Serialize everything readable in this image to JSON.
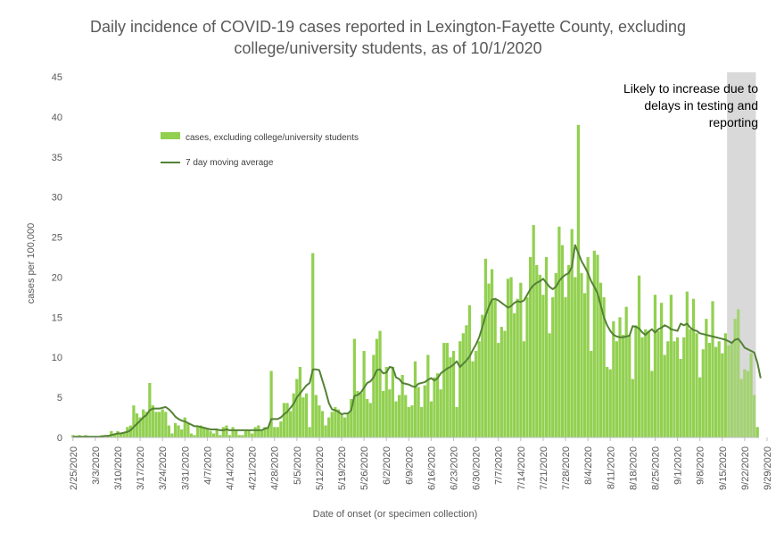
{
  "chart_data": {
    "type": "bar",
    "title_line1": "Daily incidence of COVID-19 cases reported in Lexington-Fayette County, excluding",
    "title_line2": "college/university students, as of 10/1/2020",
    "xlabel": "Date of onset (or specimen collection)",
    "ylabel": "cases per 100,000",
    "ylim": [
      0,
      45
    ],
    "yticks": [
      0,
      5,
      10,
      15,
      20,
      25,
      30,
      35,
      40,
      45
    ],
    "x_start": "2/25/2020",
    "x_tick_labels": [
      "2/25/2020",
      "3/3/2020",
      "3/10/2020",
      "3/17/2020",
      "3/24/2020",
      "3/31/2020",
      "4/7/2020",
      "4/14/2020",
      "4/21/2020",
      "4/28/2020",
      "5/5/2020",
      "5/12/2020",
      "5/19/2020",
      "5/26/2020",
      "6/2/2020",
      "6/9/2020",
      "6/16/2020",
      "6/23/2020",
      "6/30/2020",
      "7/7/2020",
      "7/14/2020",
      "7/21/2020",
      "7/28/2020",
      "8/4/2020",
      "8/11/2020",
      "8/18/2020",
      "8/25/2020",
      "9/1/2020",
      "9/8/2020",
      "9/15/2020",
      "9/22/2020",
      "9/29/2020"
    ],
    "legend_position": "top-left",
    "series": [
      {
        "name": "cases, excluding college/university students",
        "kind": "bar",
        "color": "#92D050",
        "values": [
          0.3,
          0,
          0.3,
          0,
          0.3,
          0,
          0,
          0,
          0,
          0.3,
          0,
          0.3,
          0.8,
          0.5,
          0.8,
          0.5,
          0.5,
          1.3,
          1.5,
          4,
          3,
          2.5,
          3.5,
          3.2,
          6.8,
          4,
          3.2,
          3.2,
          3.5,
          3.2,
          1.5,
          0.5,
          1.8,
          1.5,
          1,
          2.5,
          1.8,
          0.5,
          0.3,
          1.3,
          1.5,
          1.3,
          1,
          0.8,
          0.5,
          1,
          0.3,
          1.3,
          1.5,
          0.3,
          1.3,
          1,
          0.3,
          0.3,
          0.8,
          1,
          0.5,
          1.3,
          1.5,
          0.8,
          1.3,
          1.3,
          8.3,
          1.3,
          1.3,
          2,
          4.3,
          4.3,
          3.3,
          5.5,
          7.3,
          8.8,
          5,
          5.5,
          1.3,
          23,
          5.3,
          4,
          3.3,
          1.5,
          2.5,
          3.2,
          3.8,
          3.5,
          3,
          2.5,
          3,
          4.8,
          12.3,
          5.8,
          5.5,
          10.8,
          4.8,
          4.3,
          10.3,
          12.3,
          13.3,
          5.8,
          8.8,
          6,
          8.8,
          4.5,
          5.3,
          7.8,
          5.3,
          3.8,
          4,
          9.5,
          6.3,
          3.8,
          6.5,
          10.3,
          4.5,
          7.5,
          8,
          6,
          11.8,
          11.8,
          10,
          10.8,
          3.8,
          12,
          13,
          14,
          16.5,
          9.5,
          10.8,
          12,
          15.3,
          22.3,
          19.2,
          21,
          17.3,
          11.8,
          13.8,
          13.3,
          19.8,
          20,
          15.5,
          17.3,
          19.3,
          12,
          17.5,
          22.5,
          26.5,
          21.5,
          20.3,
          17.8,
          22.5,
          13,
          17.5,
          20.5,
          26.3,
          24,
          17.5,
          21.5,
          26,
          20,
          39,
          20.5,
          18,
          22.5,
          10.8,
          23.3,
          22.8,
          19.3,
          17.5,
          8.8,
          8.5,
          14.5,
          12,
          15,
          12.8,
          16.3,
          12.8,
          7.3,
          14,
          20.2,
          12.5,
          13.5,
          13.3,
          8.3,
          17.8,
          13.3,
          16.8,
          10.3,
          12,
          17.8,
          12,
          12.5,
          9.8,
          12.5,
          18.2,
          13.5,
          17.3,
          13,
          7.5,
          11,
          14.8,
          11.8,
          17,
          11.3,
          12,
          10.5,
          13,
          11.5,
          11.8,
          14.8,
          16,
          7.3,
          8.5,
          8.3,
          10.5,
          5.3,
          1.3
        ]
      },
      {
        "name": "7 day moving average",
        "kind": "line",
        "color": "#548235",
        "values": [
          0.1,
          0.1,
          0.1,
          0.1,
          0.1,
          0.1,
          0.1,
          0.1,
          0.1,
          0.1,
          0.2,
          0.2,
          0.3,
          0.4,
          0.5,
          0.5,
          0.6,
          0.7,
          0.9,
          1.3,
          1.7,
          2.1,
          2.5,
          2.8,
          3.4,
          3.6,
          3.6,
          3.6,
          3.7,
          3.8,
          3.5,
          3.1,
          2.6,
          2.3,
          2.1,
          2,
          1.8,
          1.6,
          1.4,
          1.4,
          1.3,
          1.2,
          1.1,
          1,
          1,
          1,
          0.9,
          0.9,
          1,
          0.9,
          0.9,
          0.9,
          0.9,
          0.9,
          0.9,
          0.9,
          0.9,
          0.9,
          0.9,
          0.9,
          1.1,
          1.2,
          2.3,
          2.3,
          2.3,
          2.5,
          2.9,
          3.2,
          3.7,
          4.2,
          5,
          5.5,
          6,
          6.5,
          6.8,
          8.5,
          8.5,
          8.4,
          7.1,
          5.8,
          4.3,
          3.5,
          3.4,
          3.2,
          2.9,
          3,
          3,
          3.4,
          5.2,
          5.3,
          5.6,
          6.2,
          6.8,
          7,
          7.5,
          8.4,
          8.5,
          8,
          8.1,
          8.8,
          8.7,
          7.5,
          7.3,
          6.8,
          6.7,
          6.6,
          6.4,
          6.3,
          6.7,
          6.8,
          6.9,
          7.2,
          7.4,
          7.1,
          7.4,
          8,
          8.3,
          8.6,
          8.8,
          9.1,
          9.5,
          8.8,
          9.2,
          9.6,
          10.1,
          10.9,
          11.6,
          12.5,
          13.8,
          15.2,
          16.3,
          17.2,
          17.3,
          17.1,
          16.8,
          16.5,
          16.2,
          16.4,
          16.8,
          17,
          16.9,
          17.1,
          17.8,
          18.5,
          19,
          19.3,
          19.5,
          19.8,
          19.3,
          18.8,
          18.5,
          18.8,
          19.5,
          20,
          20.3,
          20.5,
          21.3,
          24,
          23,
          22,
          21.3,
          20.5,
          19.5,
          18.8,
          18,
          16.5,
          15,
          14,
          13.3,
          12.8,
          12.6,
          12.5,
          12.5,
          12.6,
          12.7,
          13.9,
          13.8,
          13.6,
          13.1,
          12.8,
          13.2,
          13.5,
          13.1,
          13.5,
          13.7,
          14,
          13.8,
          13.5,
          13.4,
          13.3,
          14.2,
          14,
          14.2,
          13.7,
          13.4,
          13.3,
          13,
          12.9,
          12.8,
          12.7,
          12.6,
          12.5,
          12.4,
          12.3,
          12.2,
          12,
          11.8,
          12.2,
          12.3,
          11.8,
          11.2,
          11,
          10.8,
          10.6,
          9.3,
          7.4
        ]
      }
    ],
    "shaded_region": {
      "from_index": 205,
      "to_index": 213,
      "color": "#D9D9D9"
    },
    "annotation_lines": [
      "Likely to increase due to",
      "delays in testing and",
      "reporting"
    ]
  }
}
